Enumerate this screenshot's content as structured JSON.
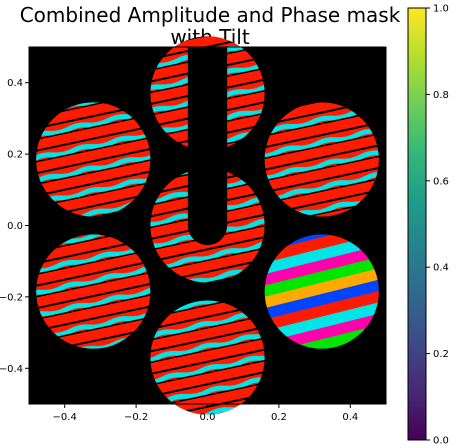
{
  "title_lines": [
    "Combined Amplitude and Phase mask",
    "with Tilt"
  ],
  "chart_data": {
    "type": "heatmap",
    "title": "Combined Amplitude and Phase mask with Tilt",
    "xlabel": "",
    "ylabel": "",
    "xlim": [
      -0.5,
      0.5
    ],
    "ylim": [
      -0.5,
      0.5
    ],
    "xticks": [
      -0.4,
      -0.2,
      0.0,
      0.2,
      0.4
    ],
    "xtick_labels": [
      "−0.4",
      "−0.2",
      "0.0",
      "0.2",
      "0.4"
    ],
    "yticks": [
      0.4,
      0.2,
      0.0,
      -0.2,
      -0.4
    ],
    "ytick_labels": [
      "0.4",
      "0.2",
      "0.0",
      "−0.2",
      "−0.4"
    ],
    "background_color": "#000000",
    "stripe_colors": [
      "#ff1a00",
      "#00e6e6"
    ],
    "special_segment_colors": [
      "#ff00aa",
      "#00e600",
      "#ffaa00",
      "#0044ff",
      "#ff1a00",
      "#00e6e6"
    ],
    "segments": [
      {
        "center": [
          0.0,
          0.0
        ],
        "radius": 0.16,
        "type": "red-cyan"
      },
      {
        "center": [
          0.0,
          0.37
        ],
        "radius": 0.16,
        "type": "red-cyan"
      },
      {
        "center": [
          0.0,
          -0.37
        ],
        "radius": 0.16,
        "type": "red-cyan"
      },
      {
        "center": [
          -0.32,
          0.185
        ],
        "radius": 0.16,
        "type": "red-cyan"
      },
      {
        "center": [
          0.32,
          0.185
        ],
        "radius": 0.16,
        "type": "red-cyan"
      },
      {
        "center": [
          -0.32,
          -0.185
        ],
        "radius": 0.16,
        "type": "red-cyan"
      },
      {
        "center": [
          0.32,
          -0.185
        ],
        "radius": 0.16,
        "type": "rainbow"
      }
    ],
    "spider": {
      "x_range": [
        -0.055,
        0.055
      ],
      "y_bottom": 0.0
    },
    "colorbar": {
      "colormap": "viridis",
      "range": [
        0.0,
        1.0
      ],
      "ticks": [
        0.0,
        0.2,
        0.4,
        0.6,
        0.8,
        1.0
      ],
      "tick_labels": [
        "0.0",
        "0.2",
        "0.4",
        "0.6",
        "0.8",
        "1.0"
      ],
      "stops": [
        "#440154",
        "#482878",
        "#3e4989",
        "#31688e",
        "#26828e",
        "#1f9e89",
        "#35b779",
        "#6ece58",
        "#b5de2b",
        "#fde725"
      ]
    }
  }
}
